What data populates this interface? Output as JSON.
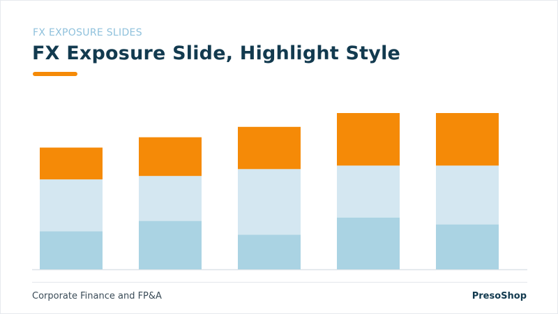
{
  "header": {
    "eyebrow": "FX EXPOSURE SLIDES",
    "title": "FX Exposure Slide, Highlight Style"
  },
  "footer": {
    "left": "Corporate Finance and FP&A",
    "right": "PresoShop"
  },
  "colors": {
    "accent": "#f58a07",
    "series": [
      "#aad3e3",
      "#d4e7f1",
      "#f58a07"
    ],
    "title": "#123a4f",
    "eyebrow": "#8fc1dc"
  },
  "chart_data": {
    "type": "bar",
    "stacked": true,
    "categories": [
      "",
      "",
      "",
      "",
      ""
    ],
    "series": [
      {
        "values": [
          55,
          70,
          50,
          75,
          65
        ]
      },
      {
        "values": [
          75,
          65,
          95,
          75,
          85
        ]
      },
      {
        "values": [
          46,
          56,
          61,
          76,
          76
        ]
      }
    ],
    "title": "",
    "xlabel": "",
    "ylabel": "",
    "ylim": [
      0,
      230
    ],
    "grid": false,
    "legend": "none"
  }
}
